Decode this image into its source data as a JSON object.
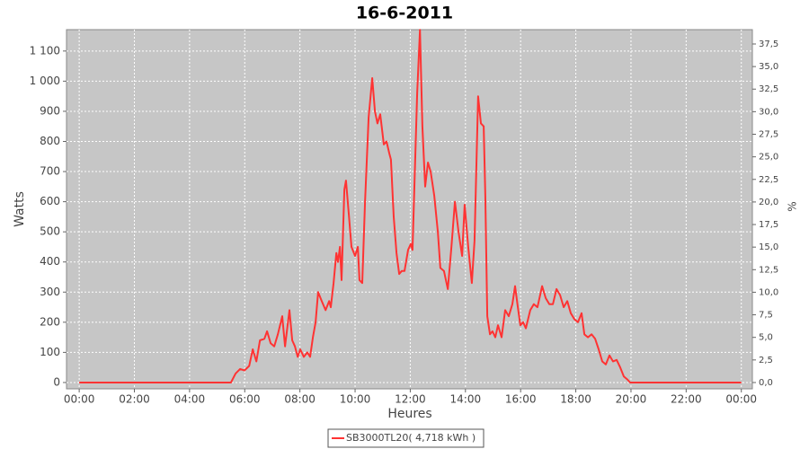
{
  "chart_data": {
    "type": "line",
    "title": "16-6-2011",
    "x_label": "Heures",
    "y_label": "Watts",
    "y2_label": "%",
    "x": [
      0,
      5.5,
      5.67,
      5.83,
      5.99,
      6.16,
      6.29,
      6.42,
      6.55,
      6.71,
      6.81,
      6.94,
      7.07,
      7.2,
      7.36,
      7.46,
      7.62,
      7.72,
      7.82,
      7.92,
      8.01,
      8.14,
      8.27,
      8.37,
      8.47,
      8.57,
      8.66,
      8.79,
      8.93,
      9.06,
      9.12,
      9.22,
      9.32,
      9.38,
      9.45,
      9.51,
      9.61,
      9.67,
      9.77,
      9.87,
      10.0,
      10.1,
      10.16,
      10.26,
      10.36,
      10.49,
      10.62,
      10.72,
      10.81,
      10.91,
      11.04,
      11.14,
      11.24,
      11.3,
      11.4,
      11.5,
      11.6,
      11.69,
      11.79,
      11.92,
      12.02,
      12.08,
      12.15,
      12.25,
      12.35,
      12.44,
      12.54,
      12.64,
      12.74,
      12.87,
      13.0,
      13.09,
      13.22,
      13.36,
      13.49,
      13.62,
      13.75,
      13.88,
      13.97,
      14.1,
      14.23,
      14.33,
      14.46,
      14.56,
      14.66,
      14.72,
      14.79,
      14.89,
      14.98,
      15.08,
      15.18,
      15.31,
      15.44,
      15.57,
      15.7,
      15.8,
      15.9,
      15.99,
      16.09,
      16.19,
      16.35,
      16.48,
      16.61,
      16.78,
      16.91,
      17.04,
      17.17,
      17.3,
      17.43,
      17.56,
      17.69,
      17.82,
      17.95,
      18.08,
      18.21,
      18.31,
      18.44,
      18.57,
      18.7,
      18.83,
      18.96,
      19.09,
      19.22,
      19.35,
      19.48,
      19.61,
      19.74,
      19.87,
      19.97,
      24
    ],
    "series": [
      {
        "name": "SB3000TL20( 4,718 kWh )",
        "color": "#ff3333",
        "values": [
          0,
          0,
          30,
          45,
          40,
          55,
          110,
          70,
          140,
          145,
          170,
          130,
          120,
          160,
          220,
          120,
          240,
          140,
          120,
          85,
          110,
          85,
          100,
          85,
          150,
          200,
          300,
          270,
          240,
          270,
          250,
          330,
          430,
          400,
          450,
          340,
          640,
          670,
          560,
          450,
          420,
          450,
          340,
          330,
          600,
          880,
          1010,
          900,
          860,
          890,
          790,
          800,
          760,
          740,
          550,
          430,
          360,
          370,
          370,
          440,
          460,
          440,
          650,
          960,
          1170,
          850,
          650,
          730,
          700,
          620,
          500,
          380,
          370,
          310,
          450,
          600,
          500,
          420,
          590,
          450,
          330,
          470,
          950,
          860,
          850,
          620,
          220,
          160,
          170,
          150,
          190,
          150,
          240,
          220,
          260,
          320,
          250,
          190,
          200,
          180,
          240,
          260,
          250,
          320,
          280,
          260,
          260,
          310,
          290,
          250,
          270,
          230,
          210,
          200,
          230,
          160,
          150,
          160,
          145,
          110,
          70,
          60,
          90,
          70,
          75,
          50,
          20,
          10,
          0,
          0
        ]
      }
    ],
    "xlim": [
      -0.46,
      24.4
    ],
    "xticks": [
      {
        "value": 0,
        "label": "00:00"
      },
      {
        "value": 2,
        "label": "02:00"
      },
      {
        "value": 4,
        "label": "04:00"
      },
      {
        "value": 6,
        "label": "06:00"
      },
      {
        "value": 8,
        "label": "08:00"
      },
      {
        "value": 10,
        "label": "10:00"
      },
      {
        "value": 12,
        "label": "12:00"
      },
      {
        "value": 14,
        "label": "14:00"
      },
      {
        "value": 16,
        "label": "16:00"
      },
      {
        "value": 18,
        "label": "18:00"
      },
      {
        "value": 20,
        "label": "20:00"
      },
      {
        "value": 22,
        "label": "22:00"
      },
      {
        "value": 24,
        "label": "00:00"
      }
    ],
    "ylim": [
      -21,
      1171
    ],
    "yticks": [
      0,
      100,
      200,
      300,
      400,
      500,
      600,
      700,
      800,
      900,
      {
        "value": 1000,
        "label": "1 000"
      },
      {
        "value": 1100,
        "label": "1 100"
      }
    ],
    "y2lim": [
      -0.7,
      39.09
    ],
    "y2ticks": [
      {
        "value": 0,
        "label": "0,0"
      },
      {
        "value": 2.5,
        "label": "2,5"
      },
      {
        "value": 5,
        "label": "5,0"
      },
      {
        "value": 7.5,
        "label": "7,5"
      },
      {
        "value": 10,
        "label": "10,0"
      },
      {
        "value": 12.5,
        "label": "12,5"
      },
      {
        "value": 15,
        "label": "15,0"
      },
      {
        "value": 17.5,
        "label": "17,5"
      },
      {
        "value": 20,
        "label": "20,0"
      },
      {
        "value": 22.5,
        "label": "22,5"
      },
      {
        "value": 25,
        "label": "25,0"
      },
      {
        "value": 27.5,
        "label": "27,5"
      },
      {
        "value": 30,
        "label": "30,0"
      },
      {
        "value": 32.5,
        "label": "32,5"
      },
      {
        "value": 35,
        "label": "35,0"
      },
      {
        "value": 37.5,
        "label": "37,5"
      }
    ],
    "grid": true,
    "legend": "bottom"
  }
}
